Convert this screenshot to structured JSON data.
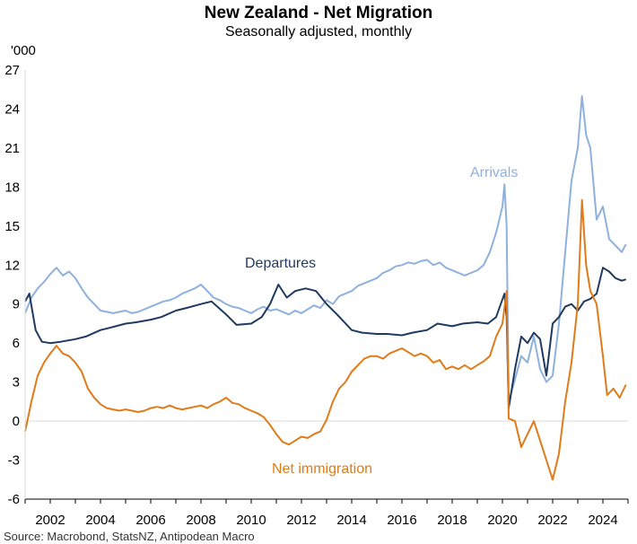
{
  "title": "New Zealand - Net Migration",
  "subtitle": "Seasonally adjusted, monthly",
  "unit": "'000",
  "source": "Source: Macrobond, StatsNZ, Antipodean Macro",
  "colors": {
    "arrivals": "#8eb1de",
    "departures": "#1f3a5f",
    "net": "#e07b1a",
    "zero_line": "#d9d9d9"
  },
  "chart_data": {
    "type": "line",
    "x_axis": {
      "type": "date",
      "range": [
        "2001-01",
        "2025-01"
      ],
      "tick_labels": [
        "2002",
        "2004",
        "2006",
        "2008",
        "2010",
        "2012",
        "2014",
        "2016",
        "2018",
        "2020",
        "2022",
        "2024"
      ]
    },
    "y_axis": {
      "range": [
        -6,
        27
      ],
      "tick_labels": [
        "27",
        "24",
        "21",
        "18",
        "15",
        "12",
        "9",
        "6",
        "3",
        "0",
        "-3",
        "-6"
      ]
    },
    "grid": false,
    "series": [
      {
        "key": "arrivals",
        "name": "Arrivals",
        "color": "#8eb1de",
        "points": [
          [
            "2001-01",
            8.3
          ],
          [
            "2001-04",
            9.5
          ],
          [
            "2001-07",
            10.2
          ],
          [
            "2001-10",
            10.7
          ],
          [
            "2002-01",
            11.3
          ],
          [
            "2002-04",
            11.8
          ],
          [
            "2002-07",
            11.2
          ],
          [
            "2002-10",
            11.5
          ],
          [
            "2003-01",
            11.0
          ],
          [
            "2003-04",
            10.2
          ],
          [
            "2003-07",
            9.5
          ],
          [
            "2003-10",
            9.0
          ],
          [
            "2004-01",
            8.5
          ],
          [
            "2004-04",
            8.4
          ],
          [
            "2004-07",
            8.3
          ],
          [
            "2004-10",
            8.4
          ],
          [
            "2005-01",
            8.5
          ],
          [
            "2005-04",
            8.3
          ],
          [
            "2005-07",
            8.4
          ],
          [
            "2005-10",
            8.6
          ],
          [
            "2006-01",
            8.8
          ],
          [
            "2006-04",
            9.0
          ],
          [
            "2006-07",
            9.2
          ],
          [
            "2006-10",
            9.3
          ],
          [
            "2007-01",
            9.5
          ],
          [
            "2007-04",
            9.8
          ],
          [
            "2007-07",
            10.0
          ],
          [
            "2007-10",
            10.2
          ],
          [
            "2008-01",
            10.5
          ],
          [
            "2008-04",
            10.0
          ],
          [
            "2008-07",
            9.5
          ],
          [
            "2008-10",
            9.3
          ],
          [
            "2009-01",
            9.0
          ],
          [
            "2009-04",
            8.8
          ],
          [
            "2009-07",
            8.7
          ],
          [
            "2009-10",
            8.5
          ],
          [
            "2010-01",
            8.3
          ],
          [
            "2010-04",
            8.6
          ],
          [
            "2010-07",
            8.8
          ],
          [
            "2010-10",
            8.5
          ],
          [
            "2011-01",
            8.6
          ],
          [
            "2011-04",
            8.4
          ],
          [
            "2011-07",
            8.2
          ],
          [
            "2011-10",
            8.5
          ],
          [
            "2012-01",
            8.3
          ],
          [
            "2012-04",
            8.6
          ],
          [
            "2012-07",
            8.9
          ],
          [
            "2012-10",
            8.7
          ],
          [
            "2013-01",
            9.3
          ],
          [
            "2013-04",
            9.0
          ],
          [
            "2013-07",
            9.6
          ],
          [
            "2013-10",
            9.8
          ],
          [
            "2014-01",
            10.0
          ],
          [
            "2014-04",
            10.4
          ],
          [
            "2014-07",
            10.6
          ],
          [
            "2014-10",
            10.8
          ],
          [
            "2015-01",
            11.0
          ],
          [
            "2015-04",
            11.4
          ],
          [
            "2015-07",
            11.6
          ],
          [
            "2015-10",
            11.9
          ],
          [
            "2016-01",
            12.0
          ],
          [
            "2016-04",
            12.2
          ],
          [
            "2016-07",
            12.1
          ],
          [
            "2016-10",
            12.3
          ],
          [
            "2017-01",
            12.4
          ],
          [
            "2017-04",
            12.0
          ],
          [
            "2017-07",
            12.2
          ],
          [
            "2017-10",
            11.8
          ],
          [
            "2018-01",
            11.6
          ],
          [
            "2018-04",
            11.4
          ],
          [
            "2018-07",
            11.2
          ],
          [
            "2018-10",
            11.4
          ],
          [
            "2019-01",
            11.6
          ],
          [
            "2019-04",
            12.0
          ],
          [
            "2019-07",
            13.0
          ],
          [
            "2019-10",
            14.5
          ],
          [
            "2020-01",
            16.5
          ],
          [
            "2020-02",
            18.2
          ],
          [
            "2020-03",
            15.0
          ],
          [
            "2020-04",
            1.5
          ],
          [
            "2020-07",
            3.2
          ],
          [
            "2020-10",
            5.0
          ],
          [
            "2021-01",
            4.5
          ],
          [
            "2021-04",
            6.5
          ],
          [
            "2021-07",
            4.0
          ],
          [
            "2021-10",
            3.0
          ],
          [
            "2022-01",
            3.5
          ],
          [
            "2022-04",
            7.5
          ],
          [
            "2022-07",
            13.0
          ],
          [
            "2022-10",
            18.5
          ],
          [
            "2023-01",
            21.0
          ],
          [
            "2023-03",
            25.0
          ],
          [
            "2023-05",
            22.0
          ],
          [
            "2023-07",
            21.0
          ],
          [
            "2023-10",
            15.5
          ],
          [
            "2024-01",
            16.5
          ],
          [
            "2024-04",
            14.0
          ],
          [
            "2024-07",
            13.5
          ],
          [
            "2024-10",
            13.0
          ],
          [
            "2024-12",
            13.6
          ]
        ]
      },
      {
        "key": "departures",
        "name": "Departures",
        "color": "#1f3a5f",
        "points": [
          [
            "2001-01",
            9.2
          ],
          [
            "2001-03",
            9.8
          ],
          [
            "2001-06",
            7.0
          ],
          [
            "2001-09",
            6.1
          ],
          [
            "2002-01",
            6.0
          ],
          [
            "2002-06",
            6.1
          ],
          [
            "2003-01",
            6.3
          ],
          [
            "2003-06",
            6.5
          ],
          [
            "2004-01",
            7.0
          ],
          [
            "2004-06",
            7.2
          ],
          [
            "2005-01",
            7.5
          ],
          [
            "2005-06",
            7.6
          ],
          [
            "2006-01",
            7.8
          ],
          [
            "2006-06",
            8.0
          ],
          [
            "2007-01",
            8.5
          ],
          [
            "2007-06",
            8.7
          ],
          [
            "2008-01",
            9.0
          ],
          [
            "2008-06",
            9.2
          ],
          [
            "2009-01",
            8.2
          ],
          [
            "2009-06",
            7.4
          ],
          [
            "2010-01",
            7.5
          ],
          [
            "2010-06",
            8.0
          ],
          [
            "2010-10",
            9.0
          ],
          [
            "2011-02",
            10.5
          ],
          [
            "2011-06",
            9.5
          ],
          [
            "2011-10",
            10.0
          ],
          [
            "2012-03",
            10.2
          ],
          [
            "2012-08",
            10.0
          ],
          [
            "2013-01",
            9.0
          ],
          [
            "2013-06",
            8.2
          ],
          [
            "2014-01",
            7.0
          ],
          [
            "2014-06",
            6.8
          ],
          [
            "2015-01",
            6.7
          ],
          [
            "2015-06",
            6.7
          ],
          [
            "2016-01",
            6.6
          ],
          [
            "2016-06",
            6.8
          ],
          [
            "2017-01",
            7.0
          ],
          [
            "2017-06",
            7.5
          ],
          [
            "2018-01",
            7.3
          ],
          [
            "2018-06",
            7.5
          ],
          [
            "2019-01",
            7.6
          ],
          [
            "2019-06",
            7.5
          ],
          [
            "2019-10",
            8.0
          ],
          [
            "2020-02",
            9.8
          ],
          [
            "2020-03",
            8.0
          ],
          [
            "2020-04",
            1.0
          ],
          [
            "2020-07",
            4.0
          ],
          [
            "2020-10",
            6.5
          ],
          [
            "2021-01",
            6.0
          ],
          [
            "2021-04",
            6.8
          ],
          [
            "2021-07",
            6.3
          ],
          [
            "2021-10",
            3.5
          ],
          [
            "2022-01",
            7.5
          ],
          [
            "2022-04",
            8.0
          ],
          [
            "2022-07",
            8.8
          ],
          [
            "2022-10",
            9.0
          ],
          [
            "2023-01",
            8.5
          ],
          [
            "2023-04",
            9.2
          ],
          [
            "2023-07",
            9.4
          ],
          [
            "2023-10",
            9.8
          ],
          [
            "2024-01",
            11.8
          ],
          [
            "2024-04",
            11.5
          ],
          [
            "2024-07",
            11.0
          ],
          [
            "2024-10",
            10.8
          ],
          [
            "2024-12",
            10.9
          ]
        ]
      },
      {
        "key": "net",
        "name": "Net immigration",
        "color": "#e07b1a",
        "points": [
          [
            "2001-01",
            -0.8
          ],
          [
            "2001-04",
            1.5
          ],
          [
            "2001-07",
            3.5
          ],
          [
            "2001-10",
            4.5
          ],
          [
            "2002-01",
            5.2
          ],
          [
            "2002-04",
            5.8
          ],
          [
            "2002-07",
            5.2
          ],
          [
            "2002-10",
            5.0
          ],
          [
            "2003-01",
            4.5
          ],
          [
            "2003-04",
            3.8
          ],
          [
            "2003-07",
            2.5
          ],
          [
            "2003-10",
            1.8
          ],
          [
            "2004-01",
            1.3
          ],
          [
            "2004-04",
            1.0
          ],
          [
            "2004-07",
            0.9
          ],
          [
            "2004-10",
            0.8
          ],
          [
            "2005-01",
            0.9
          ],
          [
            "2005-04",
            0.8
          ],
          [
            "2005-07",
            0.7
          ],
          [
            "2005-10",
            0.8
          ],
          [
            "2006-01",
            1.0
          ],
          [
            "2006-04",
            1.1
          ],
          [
            "2006-07",
            1.0
          ],
          [
            "2006-10",
            1.2
          ],
          [
            "2007-01",
            1.0
          ],
          [
            "2007-04",
            0.9
          ],
          [
            "2007-07",
            1.0
          ],
          [
            "2007-10",
            1.1
          ],
          [
            "2008-01",
            1.2
          ],
          [
            "2008-04",
            1.0
          ],
          [
            "2008-07",
            1.3
          ],
          [
            "2008-10",
            1.5
          ],
          [
            "2009-01",
            1.8
          ],
          [
            "2009-04",
            1.4
          ],
          [
            "2009-07",
            1.3
          ],
          [
            "2009-10",
            1.0
          ],
          [
            "2010-01",
            0.8
          ],
          [
            "2010-04",
            0.6
          ],
          [
            "2010-07",
            0.3
          ],
          [
            "2010-10",
            -0.3
          ],
          [
            "2011-01",
            -1.0
          ],
          [
            "2011-04",
            -1.6
          ],
          [
            "2011-07",
            -1.8
          ],
          [
            "2011-10",
            -1.5
          ],
          [
            "2012-01",
            -1.2
          ],
          [
            "2012-04",
            -1.3
          ],
          [
            "2012-07",
            -1.0
          ],
          [
            "2012-10",
            -0.8
          ],
          [
            "2013-01",
            0.1
          ],
          [
            "2013-04",
            1.5
          ],
          [
            "2013-07",
            2.5
          ],
          [
            "2013-10",
            3.0
          ],
          [
            "2014-01",
            3.8
          ],
          [
            "2014-04",
            4.3
          ],
          [
            "2014-07",
            4.8
          ],
          [
            "2014-10",
            5.0
          ],
          [
            "2015-01",
            5.0
          ],
          [
            "2015-04",
            4.8
          ],
          [
            "2015-07",
            5.2
          ],
          [
            "2015-10",
            5.4
          ],
          [
            "2016-01",
            5.6
          ],
          [
            "2016-04",
            5.3
          ],
          [
            "2016-07",
            5.0
          ],
          [
            "2016-10",
            5.2
          ],
          [
            "2017-01",
            5.0
          ],
          [
            "2017-04",
            4.5
          ],
          [
            "2017-07",
            4.7
          ],
          [
            "2017-10",
            4.0
          ],
          [
            "2018-01",
            4.2
          ],
          [
            "2018-04",
            4.0
          ],
          [
            "2018-07",
            4.3
          ],
          [
            "2018-10",
            4.0
          ],
          [
            "2019-01",
            4.3
          ],
          [
            "2019-04",
            4.6
          ],
          [
            "2019-07",
            5.0
          ],
          [
            "2019-10",
            6.5
          ],
          [
            "2020-01",
            7.5
          ],
          [
            "2020-03",
            10.0
          ],
          [
            "2020-04",
            0.2
          ],
          [
            "2020-07",
            0.0
          ],
          [
            "2020-10",
            -2.0
          ],
          [
            "2021-01",
            -1.0
          ],
          [
            "2021-04",
            0.0
          ],
          [
            "2021-07",
            -1.5
          ],
          [
            "2021-10",
            -3.0
          ],
          [
            "2022-01",
            -4.5
          ],
          [
            "2022-04",
            -2.5
          ],
          [
            "2022-07",
            1.5
          ],
          [
            "2022-10",
            4.5
          ],
          [
            "2023-01",
            9.0
          ],
          [
            "2023-03",
            17.0
          ],
          [
            "2023-05",
            12.0
          ],
          [
            "2023-07",
            10.0
          ],
          [
            "2023-10",
            9.0
          ],
          [
            "2024-01",
            5.0
          ],
          [
            "2024-03",
            2.0
          ],
          [
            "2024-06",
            2.5
          ],
          [
            "2024-09",
            1.8
          ],
          [
            "2024-12",
            2.8
          ]
        ]
      }
    ],
    "annotations": [
      "Arrivals",
      "Departures",
      "Net immigration"
    ]
  }
}
